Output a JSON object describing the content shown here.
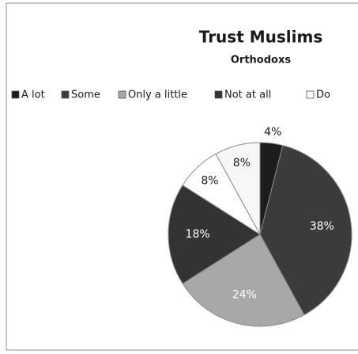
{
  "chart_data": {
    "type": "pie",
    "title": "Trust Muslims",
    "subtitle": "Orthodoxs",
    "categories": [
      "A lot",
      "Some",
      "Only a little",
      "Not at all",
      "Do",
      null
    ],
    "values": [
      4,
      38,
      24,
      18,
      8,
      8
    ],
    "value_labels": [
      "4%",
      "38%",
      "24%",
      "18%",
      "8%",
      "8%"
    ],
    "colors": [
      "#1c1c1c",
      "#3b3b3b",
      "#a8a8a8",
      "#333333",
      "#ffffff",
      "#f7f7f7"
    ],
    "legend": "top"
  }
}
